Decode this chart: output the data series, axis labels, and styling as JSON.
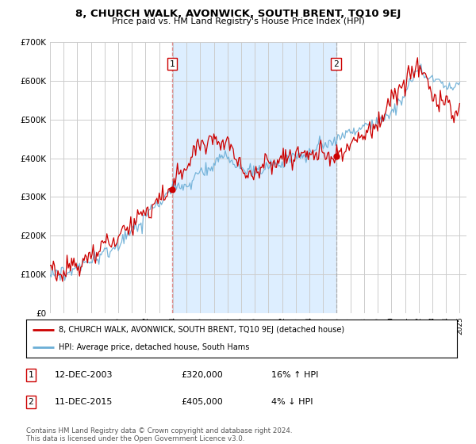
{
  "title": "8, CHURCH WALK, AVONWICK, SOUTH BRENT, TQ10 9EJ",
  "subtitle": "Price paid vs. HM Land Registry's House Price Index (HPI)",
  "ylim": [
    0,
    700000
  ],
  "yticks": [
    0,
    100000,
    200000,
    300000,
    400000,
    500000,
    600000,
    700000
  ],
  "ytick_labels": [
    "£0",
    "£100K",
    "£200K",
    "£300K",
    "£400K",
    "£500K",
    "£600K",
    "£700K"
  ],
  "sale1_year": 2003.95,
  "sale1_price": 320000,
  "sale1_label": "1",
  "sale1_date": "12-DEC-2003",
  "sale1_hpi": "16% ↑ HPI",
  "sale2_year": 2015.95,
  "sale2_price": 405000,
  "sale2_label": "2",
  "sale2_date": "11-DEC-2015",
  "sale2_hpi": "4% ↓ HPI",
  "hpi_color": "#6baed6",
  "sale_color": "#cc0000",
  "dashed_color": "#cc0000",
  "shade_color": "#ddeeff",
  "background_color": "#ffffff",
  "grid_color": "#cccccc",
  "legend_label1": "8, CHURCH WALK, AVONWICK, SOUTH BRENT, TQ10 9EJ (detached house)",
  "legend_label2": "HPI: Average price, detached house, South Hams",
  "footer": "Contains HM Land Registry data © Crown copyright and database right 2024.\nThis data is licensed under the Open Government Licence v3.0.",
  "xstart": 1995,
  "xend": 2025
}
